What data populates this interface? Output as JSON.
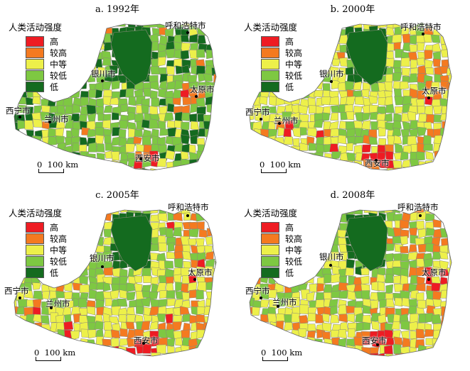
{
  "colors": {
    "high": "#ee1c23",
    "higher": "#f47a20",
    "medium": "#edf04a",
    "lower": "#7ec842",
    "low": "#146b1f",
    "boundary": "#8a8a7a"
  },
  "legend": {
    "title": "人类活动强度",
    "items": [
      {
        "key": "high",
        "label": "高"
      },
      {
        "key": "higher",
        "label": "较高"
      },
      {
        "key": "medium",
        "label": "中等"
      },
      {
        "key": "lower",
        "label": "较低"
      },
      {
        "key": "low",
        "label": "低"
      }
    ]
  },
  "scale_label": "0  100 km",
  "scale_zero": "0",
  "scale_text": "100 km",
  "cities": {
    "hohhot": "呼和浩特市",
    "yinchuan": "银川市",
    "taiyuan": "太原市",
    "xining": "西宁市",
    "lanzhou": "兰州市",
    "xian": "西安市"
  },
  "panels": [
    {
      "title": "a. 1992年",
      "year": "1992"
    },
    {
      "title": "b. 2000年",
      "year": "2000"
    },
    {
      "title": "c. 2005年",
      "year": "2005"
    },
    {
      "title": "d. 2008年",
      "year": "2008"
    }
  ]
}
